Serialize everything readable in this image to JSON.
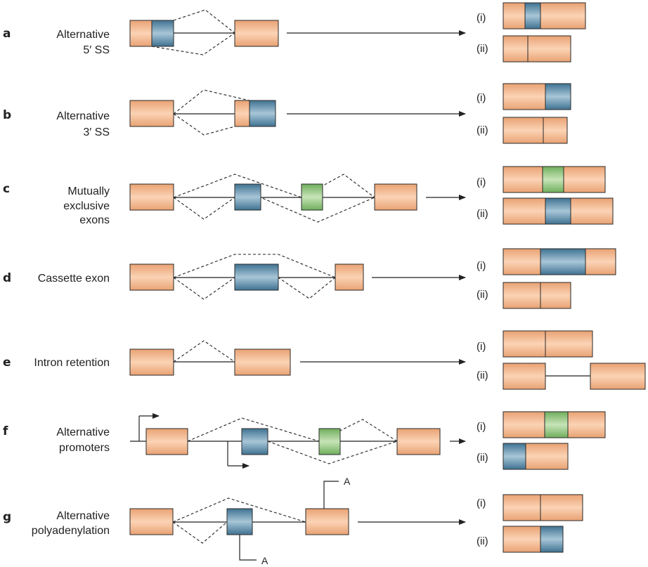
{
  "colors": {
    "constitutive": "#F3B68C",
    "alt_blue": "#5B8CA8",
    "alt_green": "#8CC27A",
    "line": "#222222"
  },
  "rows": [
    {
      "letter": "a",
      "label": [
        "Alternative",
        "5′  SS"
      ],
      "isoforms": [
        "(i)",
        "(ii)"
      ]
    },
    {
      "letter": "b",
      "label": [
        "Alternative",
        "3′  SS"
      ],
      "isoforms": [
        "(i)",
        "(ii)"
      ]
    },
    {
      "letter": "c",
      "label": [
        "Mutually",
        "exclusive",
        "exons"
      ],
      "isoforms": [
        "(i)",
        "(ii)"
      ]
    },
    {
      "letter": "d",
      "label": [
        "Cassette exon"
      ],
      "isoforms": [
        "(i)",
        "(ii)"
      ]
    },
    {
      "letter": "e",
      "label": [
        "Intron retention"
      ],
      "isoforms": [
        "(i)",
        "(ii)"
      ]
    },
    {
      "letter": "f",
      "label": [
        "Alternative",
        "promoters"
      ],
      "isoforms": [
        "(i)",
        "(ii)"
      ]
    },
    {
      "letter": "g",
      "label": [
        "Alternative",
        "polyadenylation"
      ],
      "isoforms": [
        "(i)",
        "(ii)"
      ]
    }
  ],
  "poly_a_label": "A"
}
